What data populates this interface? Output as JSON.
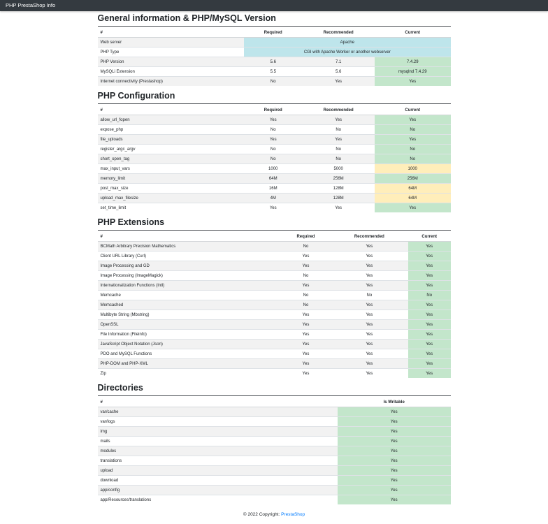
{
  "navbar": {
    "brand": "PHP PrestaShop Info"
  },
  "colors": {
    "navbar_bg": "#343a40",
    "success_bg": "#c3e6cb",
    "warning_bg": "#ffeeba",
    "info_bg": "#bee5eb",
    "link": "#007bff"
  },
  "sections": [
    {
      "title": "General information & PHP/MySQL Version",
      "columns": [
        "#",
        "Required",
        "Recommended",
        "Current"
      ],
      "rows": [
        {
          "label": "Web server",
          "values": [
            "Apache"
          ],
          "span": 3,
          "status": "info"
        },
        {
          "label": "PHP Type",
          "values": [
            "CGI with Apache Worker or another webserver"
          ],
          "span": 3,
          "status": "info"
        },
        {
          "label": "PHP Version",
          "values": [
            "5.6",
            "7.1",
            "7.4.29"
          ],
          "status": "success"
        },
        {
          "label": "MySQLi Extension",
          "values": [
            "5.5",
            "5.6",
            "mysqlnd 7.4.29"
          ],
          "status": "success"
        },
        {
          "label": "Internet connectivity (Prestashop)",
          "values": [
            "No",
            "Yes",
            "Yes"
          ],
          "status": "success"
        }
      ]
    },
    {
      "title": "PHP Configuration",
      "columns": [
        "#",
        "Required",
        "Recommended",
        "Current"
      ],
      "rows": [
        {
          "label": "allow_url_fopen",
          "values": [
            "Yes",
            "Yes",
            "Yes"
          ],
          "status": "success"
        },
        {
          "label": "expose_php",
          "values": [
            "No",
            "No",
            "No"
          ],
          "status": "success"
        },
        {
          "label": "file_uploads",
          "values": [
            "Yes",
            "Yes",
            "Yes"
          ],
          "status": "success"
        },
        {
          "label": "register_argc_argv",
          "values": [
            "No",
            "No",
            "No"
          ],
          "status": "success"
        },
        {
          "label": "short_open_tag",
          "values": [
            "No",
            "No",
            "No"
          ],
          "status": "success"
        },
        {
          "label": "max_input_vars",
          "values": [
            "1000",
            "5000",
            "1000"
          ],
          "status": "warning"
        },
        {
          "label": "memory_limit",
          "values": [
            "64M",
            "256M",
            "256M"
          ],
          "status": "success"
        },
        {
          "label": "post_max_size",
          "values": [
            "16M",
            "128M",
            "64M"
          ],
          "status": "warning"
        },
        {
          "label": "upload_max_filesize",
          "values": [
            "4M",
            "128M",
            "64M"
          ],
          "status": "warning"
        },
        {
          "label": "set_time_limit",
          "values": [
            "Yes",
            "Yes",
            "Yes"
          ],
          "status": "success"
        }
      ]
    },
    {
      "title": "PHP Extensions",
      "columns": [
        "#",
        "Required",
        "Recommended",
        "Current"
      ],
      "rows": [
        {
          "label": "BCMath Arbitrary Precision Mathematics",
          "values": [
            "No",
            "Yes",
            "Yes"
          ],
          "status": "success"
        },
        {
          "label": "Client URL Library (Curl)",
          "values": [
            "Yes",
            "Yes",
            "Yes"
          ],
          "status": "success"
        },
        {
          "label": "Image Processing and GD",
          "values": [
            "Yes",
            "Yes",
            "Yes"
          ],
          "status": "success"
        },
        {
          "label": "Image Processing (ImageMagick)",
          "values": [
            "No",
            "Yes",
            "Yes"
          ],
          "status": "success"
        },
        {
          "label": "Internationalization Functions (Intl)",
          "values": [
            "Yes",
            "Yes",
            "Yes"
          ],
          "status": "success"
        },
        {
          "label": "Memcache",
          "values": [
            "No",
            "No",
            "No"
          ],
          "status": "success"
        },
        {
          "label": "Memcached",
          "values": [
            "No",
            "Yes",
            "Yes"
          ],
          "status": "success"
        },
        {
          "label": "Multibyte String (Mbstring)",
          "values": [
            "Yes",
            "Yes",
            "Yes"
          ],
          "status": "success"
        },
        {
          "label": "OpenSSL",
          "values": [
            "Yes",
            "Yes",
            "Yes"
          ],
          "status": "success"
        },
        {
          "label": "File Information (Fileinfo)",
          "values": [
            "Yes",
            "Yes",
            "Yes"
          ],
          "status": "success"
        },
        {
          "label": "JavaScript Object Notation (Json)",
          "values": [
            "Yes",
            "Yes",
            "Yes"
          ],
          "status": "success"
        },
        {
          "label": "PDO and MySQL Functions",
          "values": [
            "Yes",
            "Yes",
            "Yes"
          ],
          "status": "success"
        },
        {
          "label": "PHP-DOM and PHP-XML",
          "values": [
            "Yes",
            "Yes",
            "Yes"
          ],
          "status": "success"
        },
        {
          "label": "Zip",
          "values": [
            "Yes",
            "Yes",
            "Yes"
          ],
          "status": "success"
        }
      ]
    },
    {
      "title": "Directories",
      "columns": [
        "#",
        "Is Writable"
      ],
      "rows": [
        {
          "label": "var/cache",
          "values": [
            "Yes"
          ],
          "status": "success"
        },
        {
          "label": "var/logs",
          "values": [
            "Yes"
          ],
          "status": "success"
        },
        {
          "label": "img",
          "values": [
            "Yes"
          ],
          "status": "success"
        },
        {
          "label": "mails",
          "values": [
            "Yes"
          ],
          "status": "success"
        },
        {
          "label": "modules",
          "values": [
            "Yes"
          ],
          "status": "success"
        },
        {
          "label": "translations",
          "values": [
            "Yes"
          ],
          "status": "success"
        },
        {
          "label": "upload",
          "values": [
            "Yes"
          ],
          "status": "success"
        },
        {
          "label": "download",
          "values": [
            "Yes"
          ],
          "status": "success"
        },
        {
          "label": "app/config",
          "values": [
            "Yes"
          ],
          "status": "success"
        },
        {
          "label": "app/Resources/translations",
          "values": [
            "Yes"
          ],
          "status": "success"
        }
      ]
    }
  ],
  "footer": {
    "text": "© 2022 Copyright:",
    "link_label": "PrestaShop"
  }
}
